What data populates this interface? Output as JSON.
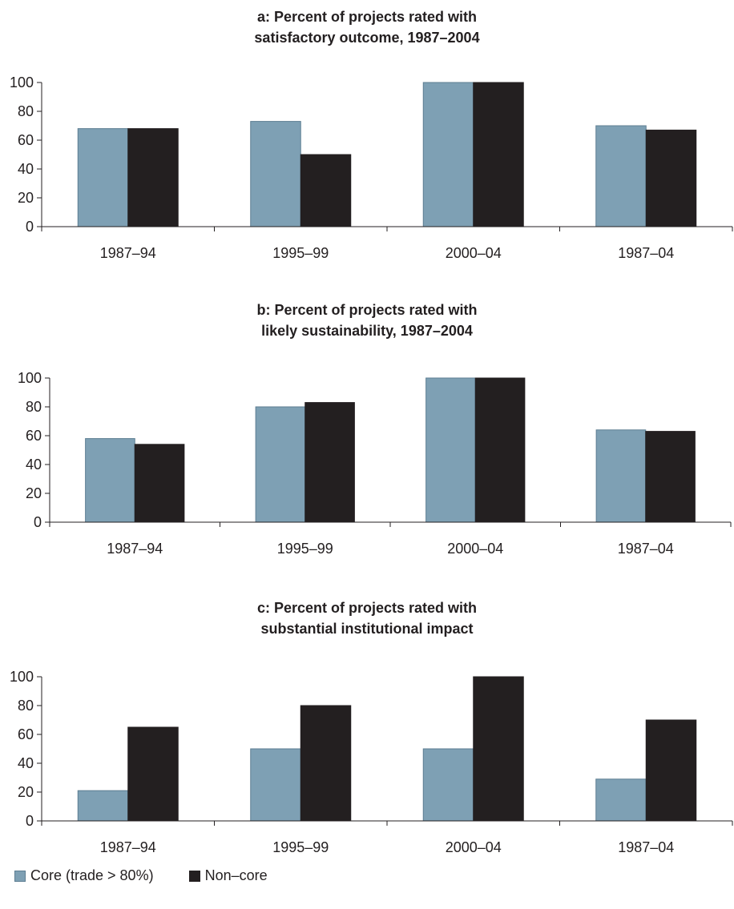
{
  "colors": {
    "core": "#7ea0b4",
    "noncore": "#231f20",
    "axis": "#231f20"
  },
  "legend": {
    "core_label": "Core (trade > 80%)",
    "noncore_label": "Non–core"
  },
  "chart_data": [
    {
      "type": "bar",
      "title_line1": "a: Percent of projects rated with",
      "title_line2": "satisfactory outcome, 1987–2004",
      "categories": [
        "1987–94",
        "1995–99",
        "2000–04",
        "1987–04"
      ],
      "ylim": [
        0,
        100
      ],
      "yticks": [
        0,
        20,
        40,
        60,
        80,
        100
      ],
      "series": [
        {
          "name": "Core (trade > 80%)",
          "values": [
            68,
            73,
            100,
            70
          ]
        },
        {
          "name": "Non–core",
          "values": [
            68,
            50,
            100,
            67
          ]
        }
      ]
    },
    {
      "type": "bar",
      "title_line1": "b: Percent of projects rated with",
      "title_line2": "likely sustainability, 1987–2004",
      "categories": [
        "1987–94",
        "1995–99",
        "2000–04",
        "1987–04"
      ],
      "ylim": [
        0,
        100
      ],
      "yticks": [
        0,
        20,
        40,
        60,
        80,
        100
      ],
      "series": [
        {
          "name": "Core (trade > 80%)",
          "values": [
            58,
            80,
            100,
            64
          ]
        },
        {
          "name": "Non–core",
          "values": [
            54,
            83,
            100,
            63
          ]
        }
      ]
    },
    {
      "type": "bar",
      "title_line1": "c: Percent of projects rated with",
      "title_line2": "substantial institutional impact",
      "categories": [
        "1987–94",
        "1995–99",
        "2000–04",
        "1987–04"
      ],
      "ylim": [
        0,
        100
      ],
      "yticks": [
        0,
        20,
        40,
        60,
        80,
        100
      ],
      "series": [
        {
          "name": "Core (trade > 80%)",
          "values": [
            21,
            50,
            50,
            29
          ]
        },
        {
          "name": "Non–core",
          "values": [
            65,
            80,
            100,
            70
          ]
        }
      ]
    }
  ]
}
